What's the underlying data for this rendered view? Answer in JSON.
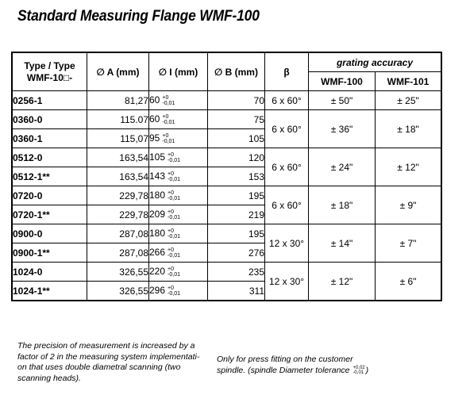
{
  "title": "Standard Measuring Flange WMF-100",
  "headers": {
    "type_line1": "Type / Type",
    "type_line2": "WMF-10□-",
    "a": "∅ A (mm)",
    "i": "∅ I (mm)",
    "b": "∅ B (mm)",
    "beta": "β",
    "grating_accuracy": "grating accuracy",
    "wmf100": "WMF-100",
    "wmf101": "WMF-101"
  },
  "rows": [
    {
      "type": "0256-1",
      "a": "81,27",
      "i": "60",
      "b": "70",
      "beta": "6 x 60°",
      "acc100": "± 50\"",
      "acc101": "± 25\""
    },
    {
      "type": "0360-0",
      "a": "115.07",
      "i": "60",
      "b": "75",
      "beta": "6 x 60°",
      "acc100": "± 36\"",
      "acc101": "± 18\""
    },
    {
      "type": "0360-1",
      "a": "115,07",
      "i": "95",
      "b": "105"
    },
    {
      "type": "0512-0",
      "a": "163,54",
      "i": "105",
      "b": "120",
      "beta": "6 x 60°",
      "acc100": "± 24\"",
      "acc101": "± 12\""
    },
    {
      "type": "0512-1**",
      "a": "163,54",
      "i": "143",
      "b": "153"
    },
    {
      "type": "0720-0",
      "a": "229,78",
      "i": "180",
      "b": "195",
      "beta": "6 x 60°",
      "acc100": "± 18\"",
      "acc101": "± 9\""
    },
    {
      "type": "0720-1**",
      "a": "229,78",
      "i": "209",
      "b": "219"
    },
    {
      "type": "0900-0",
      "a": "287,08",
      "i": "180",
      "b": "195",
      "beta": "12 x 30°",
      "acc100": "± 14\"",
      "acc101": "± 7\""
    },
    {
      "type": "0900-1**",
      "a": "287,08",
      "i": "266",
      "b": "276"
    },
    {
      "type": "1024-0",
      "a": "326,55",
      "i": "220",
      "b": "235",
      "beta": "12 x 30°",
      "acc100": "± 12\"",
      "acc101": "± 6\""
    },
    {
      "type": "1024-1**",
      "a": "326,55",
      "i": "296",
      "b": "311"
    }
  ],
  "tolerance_i": {
    "upper": "+0",
    "lower": "-0,01"
  },
  "note1": "The precision of measurement is increased by a factor of 2 in the measuring system implementati-on that uses double diametral scanning (two scanning heads).",
  "note2_text": "Only for press fitting on the customer spindle. (spindle Diameter tolerance",
  "note2_tol_upper": "+0,02",
  "note2_tol_lower": "-0,01",
  "note2_close": ")"
}
